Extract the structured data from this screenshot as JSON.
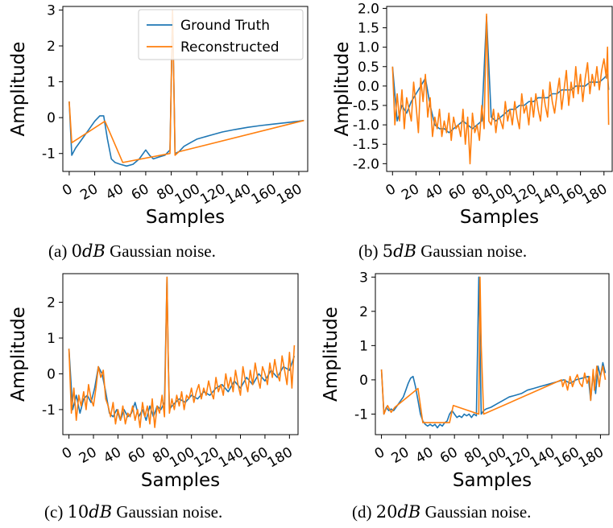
{
  "colors": {
    "ground_truth": "#1f77b4",
    "reconstructed": "#ff7f0e"
  },
  "captions": [
    {
      "label": "(a)",
      "db": "0",
      "unit": "dB",
      "text": "Gaussian noise."
    },
    {
      "label": "(b)",
      "db": "5",
      "unit": "dB",
      "text": "Gaussian noise."
    },
    {
      "label": "(c)",
      "db": "10",
      "unit": "dB",
      "text": "Gaussian noise."
    },
    {
      "label": "(d)",
      "db": "20",
      "unit": "dB",
      "text": "Gaussian noise."
    }
  ],
  "chart_data": [
    {
      "type": "line",
      "id": "a",
      "xlabel": "Samples",
      "ylabel": "Amplitude",
      "xlim": [
        -5,
        187
      ],
      "ylim": [
        -1.5,
        3.1
      ],
      "xticks": [
        0,
        20,
        40,
        60,
        80,
        100,
        120,
        140,
        160,
        180
      ],
      "yticks": [
        -1,
        0,
        1,
        2,
        3
      ],
      "legend": {
        "placement": "top-right",
        "entries": [
          "Ground Truth",
          "Reconstructed"
        ]
      },
      "series": [
        {
          "name": "Ground Truth",
          "color": "#1f77b4",
          "x": [
            0,
            2,
            5,
            10,
            15,
            20,
            24,
            27,
            30,
            33,
            36,
            40,
            45,
            50,
            55,
            60,
            63,
            66,
            70,
            75,
            79,
            81,
            82,
            83,
            86,
            90,
            95,
            100,
            110,
            120,
            130,
            140,
            150,
            160,
            170,
            180,
            184
          ],
          "y": [
            0.45,
            -1.05,
            -0.85,
            -0.6,
            -0.35,
            -0.1,
            0.05,
            0.05,
            -0.6,
            -1.15,
            -1.25,
            -1.3,
            -1.35,
            -1.3,
            -1.15,
            -0.9,
            -1.05,
            -1.15,
            -1.1,
            -1.05,
            -0.9,
            2.9,
            1.0,
            -1.0,
            -0.95,
            -0.8,
            -0.7,
            -0.6,
            -0.5,
            -0.4,
            -0.33,
            -0.27,
            -0.22,
            -0.18,
            -0.14,
            -0.1,
            -0.08
          ]
        },
        {
          "name": "Reconstructed",
          "color": "#ff7f0e",
          "x": [
            0,
            2,
            28,
            42,
            79,
            81,
            82,
            83,
            86,
            184
          ],
          "y": [
            0.45,
            -0.7,
            -0.1,
            -1.25,
            -1.0,
            3.0,
            1.0,
            -1.05,
            -0.95,
            -0.08
          ]
        }
      ]
    },
    {
      "type": "line",
      "id": "b",
      "xlabel": "Samples",
      "ylabel": "Amplitude",
      "xlim": [
        -5,
        187
      ],
      "ylim": [
        -2.2,
        2.05
      ],
      "xticks": [
        0,
        20,
        40,
        60,
        80,
        100,
        120,
        140,
        160,
        180
      ],
      "yticks": [
        -2.0,
        -1.5,
        -1.0,
        -0.5,
        0.0,
        0.5,
        1.0,
        1.5,
        2.0
      ],
      "tick_format": "fixed1",
      "series": [
        {
          "name": "Ground Truth",
          "color": "#1f77b4",
          "x": [
            0,
            4,
            8,
            12,
            16,
            20,
            24,
            28,
            32,
            36,
            40,
            44,
            48,
            52,
            56,
            60,
            64,
            68,
            72,
            76,
            80,
            84,
            88,
            92,
            96,
            100,
            104,
            108,
            112,
            116,
            120,
            124,
            128,
            132,
            136,
            140,
            144,
            148,
            152,
            156,
            160,
            164,
            168,
            172,
            176,
            180,
            183,
            184
          ],
          "y": [
            0.5,
            -0.9,
            -0.5,
            -0.7,
            -0.4,
            -0.2,
            0.0,
            0.2,
            -0.5,
            -1.0,
            -1.1,
            -1.1,
            -1.2,
            -1.1,
            -1.0,
            -0.9,
            -1.0,
            -1.1,
            -1.0,
            -0.9,
            1.8,
            -0.8,
            -0.9,
            -0.8,
            -0.7,
            -0.6,
            -0.6,
            -0.5,
            -0.5,
            -0.4,
            -0.4,
            -0.3,
            -0.3,
            -0.3,
            -0.2,
            -0.2,
            -0.1,
            -0.1,
            -0.1,
            0.0,
            0.0,
            0.0,
            0.1,
            0.1,
            0.1,
            0.2,
            0.3,
            -0.1
          ]
        },
        {
          "name": "Reconstructed",
          "color": "#ff7f0e",
          "x": [
            0,
            2,
            4,
            6,
            8,
            10,
            12,
            14,
            16,
            18,
            20,
            22,
            24,
            26,
            28,
            30,
            32,
            34,
            36,
            38,
            40,
            42,
            44,
            46,
            48,
            50,
            52,
            54,
            56,
            58,
            60,
            62,
            64,
            66,
            68,
            70,
            72,
            74,
            76,
            78,
            80,
            82,
            84,
            86,
            88,
            90,
            92,
            94,
            96,
            98,
            100,
            102,
            104,
            106,
            108,
            110,
            112,
            114,
            116,
            118,
            120,
            122,
            124,
            126,
            128,
            130,
            132,
            134,
            136,
            138,
            140,
            142,
            144,
            146,
            148,
            150,
            152,
            154,
            156,
            158,
            160,
            162,
            164,
            166,
            168,
            170,
            172,
            174,
            176,
            178,
            180,
            182,
            183,
            184
          ],
          "y": [
            0.5,
            -1.0,
            -0.2,
            -0.9,
            -0.1,
            -1.1,
            -0.3,
            -0.6,
            -0.9,
            0.1,
            -0.5,
            -1.2,
            0.2,
            -0.4,
            0.3,
            -0.8,
            -0.3,
            -1.3,
            -0.8,
            -1.1,
            -0.6,
            -1.3,
            -0.9,
            -1.2,
            -0.7,
            -1.4,
            -0.8,
            -1.1,
            -1.0,
            -1.3,
            -0.6,
            -1.5,
            -0.8,
            -2.0,
            -0.7,
            -1.2,
            -1.0,
            -1.4,
            -0.5,
            -1.1,
            1.85,
            -0.9,
            -1.0,
            -0.6,
            -1.2,
            -0.7,
            -0.9,
            -1.1,
            -0.4,
            -0.9,
            -0.6,
            -1.0,
            -0.4,
            -0.8,
            -1.1,
            -0.2,
            -0.7,
            -0.5,
            -1.0,
            -0.3,
            -0.8,
            -0.2,
            -0.6,
            -0.9,
            -0.1,
            -0.5,
            -0.8,
            0.1,
            -0.4,
            -0.7,
            -0.2,
            0.2,
            -0.6,
            -0.1,
            0.4,
            -0.5,
            0.1,
            -0.3,
            0.5,
            -0.2,
            0.3,
            -0.4,
            0.2,
            0.6,
            -0.2,
            0.3,
            0.0,
            0.5,
            -0.1,
            0.4,
            0.7,
            0.2,
            1.0,
            -1.0
          ]
        }
      ]
    },
    {
      "type": "line",
      "id": "c",
      "xlabel": "Samples",
      "ylabel": "Amplitude",
      "xlim": [
        -5,
        187
      ],
      "ylim": [
        -1.7,
        2.8
      ],
      "xticks": [
        0,
        20,
        40,
        60,
        80,
        100,
        120,
        140,
        160,
        180
      ],
      "yticks": [
        -1,
        0,
        1,
        2
      ],
      "series": [
        {
          "name": "Ground Truth",
          "color": "#1f77b4",
          "x": [
            0,
            3,
            6,
            9,
            12,
            15,
            18,
            21,
            24,
            27,
            30,
            33,
            36,
            39,
            42,
            45,
            48,
            51,
            54,
            57,
            60,
            63,
            66,
            69,
            72,
            75,
            78,
            80,
            81,
            82,
            84,
            87,
            90,
            95,
            100,
            105,
            110,
            115,
            120,
            125,
            130,
            135,
            140,
            145,
            150,
            155,
            160,
            165,
            170,
            175,
            180,
            184
          ],
          "y": [
            0.7,
            -1.0,
            -0.6,
            -1.1,
            -0.7,
            -0.6,
            -0.8,
            -0.4,
            0.2,
            0.0,
            -0.5,
            -1.1,
            -1.2,
            -1.0,
            -1.3,
            -1.0,
            -1.2,
            -1.1,
            -0.8,
            -1.2,
            -1.0,
            -1.3,
            -0.9,
            -1.2,
            -0.9,
            -1.0,
            -0.8,
            2.7,
            0.5,
            -1.0,
            -0.9,
            -0.8,
            -0.7,
            -0.8,
            -0.6,
            -0.7,
            -0.5,
            -0.6,
            -0.4,
            -0.3,
            -0.5,
            -0.2,
            -0.4,
            -0.1,
            -0.3,
            0.0,
            -0.2,
            0.1,
            -0.1,
            0.2,
            0.1,
            0.5
          ]
        },
        {
          "name": "Reconstructed",
          "color": "#ff7f0e",
          "x": [
            0,
            2,
            4,
            6,
            8,
            10,
            12,
            14,
            16,
            18,
            20,
            22,
            24,
            26,
            28,
            30,
            32,
            34,
            36,
            38,
            40,
            42,
            44,
            46,
            48,
            50,
            52,
            54,
            56,
            58,
            60,
            62,
            64,
            66,
            68,
            70,
            72,
            74,
            76,
            78,
            80,
            81,
            82,
            84,
            86,
            88,
            90,
            92,
            94,
            96,
            98,
            100,
            102,
            104,
            106,
            108,
            110,
            112,
            114,
            116,
            118,
            120,
            122,
            124,
            126,
            128,
            130,
            132,
            134,
            136,
            138,
            140,
            142,
            144,
            146,
            148,
            150,
            152,
            154,
            156,
            158,
            160,
            162,
            164,
            166,
            168,
            170,
            172,
            174,
            176,
            178,
            180,
            182,
            184
          ],
          "y": [
            0.7,
            -1.1,
            -0.4,
            -1.3,
            -0.6,
            -0.9,
            -0.5,
            -1.0,
            -0.3,
            -0.7,
            -0.9,
            -0.4,
            0.2,
            -0.1,
            0.1,
            -0.7,
            -0.9,
            -1.2,
            -0.8,
            -1.4,
            -1.0,
            -1.3,
            -0.9,
            -1.4,
            -1.1,
            -1.2,
            -0.9,
            -1.3,
            -1.0,
            -1.5,
            -0.8,
            -1.2,
            -0.9,
            -1.4,
            -0.7,
            -1.5,
            -0.9,
            -1.1,
            -0.6,
            -1.2,
            2.7,
            0.5,
            -1.1,
            -0.7,
            -1.0,
            -0.6,
            -0.9,
            -0.5,
            -1.0,
            -0.6,
            -0.7,
            -0.4,
            -0.8,
            -0.5,
            -0.3,
            -0.7,
            -0.4,
            -0.6,
            -0.2,
            -0.5,
            -0.7,
            -0.1,
            -0.5,
            -0.3,
            -0.6,
            0.0,
            -0.4,
            -0.1,
            -0.5,
            0.1,
            -0.3,
            -0.6,
            0.2,
            -0.2,
            -0.5,
            0.1,
            -0.3,
            0.3,
            -0.1,
            -0.4,
            0.2,
            0.0,
            -0.3,
            0.3,
            -0.1,
            0.4,
            0.0,
            -0.2,
            0.5,
            0.1,
            -0.3,
            0.6,
            -0.4,
            0.8
          ]
        }
      ]
    },
    {
      "type": "line",
      "id": "d",
      "xlabel": "Samples",
      "ylabel": "Amplitude",
      "xlim": [
        -5,
        187
      ],
      "ylim": [
        -1.6,
        3.1
      ],
      "xticks": [
        0,
        20,
        40,
        60,
        80,
        100,
        120,
        140,
        160,
        180
      ],
      "yticks": [
        -1,
        0,
        1,
        2,
        3
      ],
      "series": [
        {
          "name": "Ground Truth",
          "color": "#1f77b4",
          "x": [
            0,
            2,
            4,
            6,
            8,
            10,
            12,
            14,
            16,
            18,
            20,
            22,
            24,
            26,
            28,
            30,
            32,
            34,
            36,
            38,
            40,
            42,
            44,
            46,
            48,
            50,
            52,
            54,
            56,
            58,
            60,
            62,
            64,
            66,
            68,
            70,
            72,
            74,
            76,
            78,
            80,
            81,
            82,
            84,
            86,
            90,
            95,
            100,
            105,
            110,
            115,
            120,
            125,
            130,
            135,
            140,
            145,
            150,
            155,
            160,
            165,
            170,
            172,
            174,
            176,
            178,
            180,
            182,
            184
          ],
          "y": [
            0.3,
            -1.0,
            -0.8,
            -0.9,
            -0.85,
            -0.9,
            -0.8,
            -0.7,
            -0.6,
            -0.5,
            -0.3,
            -0.1,
            0.05,
            0.1,
            -0.2,
            -0.6,
            -1.0,
            -1.2,
            -1.3,
            -1.35,
            -1.3,
            -1.35,
            -1.3,
            -1.4,
            -1.3,
            -1.35,
            -1.25,
            -1.2,
            -1.0,
            -0.9,
            -1.0,
            -1.1,
            -1.05,
            -1.1,
            -1.0,
            -1.05,
            -1.0,
            -1.1,
            -1.0,
            -1.05,
            3.0,
            1.0,
            -1.0,
            -0.9,
            -0.85,
            -0.8,
            -0.7,
            -0.6,
            -0.5,
            -0.45,
            -0.4,
            -0.3,
            -0.25,
            -0.2,
            -0.15,
            -0.1,
            -0.05,
            0.0,
            -0.1,
            0.0,
            0.05,
            0.1,
            -0.6,
            0.2,
            -0.4,
            0.4,
            0.1,
            0.5,
            0.2
          ]
        },
        {
          "name": "Reconstructed",
          "color": "#ff7f0e",
          "x": [
            0,
            2,
            5,
            8,
            11,
            30,
            34,
            56,
            59,
            80,
            81,
            82,
            84,
            148,
            149,
            151,
            153,
            155,
            157,
            159,
            161,
            163,
            165,
            167,
            169,
            171,
            172,
            174,
            175,
            177,
            179,
            180,
            182,
            184
          ],
          "y": [
            0.3,
            -1.0,
            -0.75,
            -0.95,
            -0.8,
            -0.25,
            -1.25,
            -1.25,
            -0.75,
            -1.0,
            3.0,
            1.0,
            -1.0,
            0.0,
            -0.2,
            0.0,
            -0.3,
            0.1,
            -0.2,
            0.0,
            0.15,
            -0.1,
            -0.2,
            0.2,
            -0.1,
            0.1,
            -0.6,
            0.3,
            -0.3,
            0.4,
            -0.2,
            0.1,
            0.4,
            0.0
          ]
        }
      ]
    }
  ]
}
